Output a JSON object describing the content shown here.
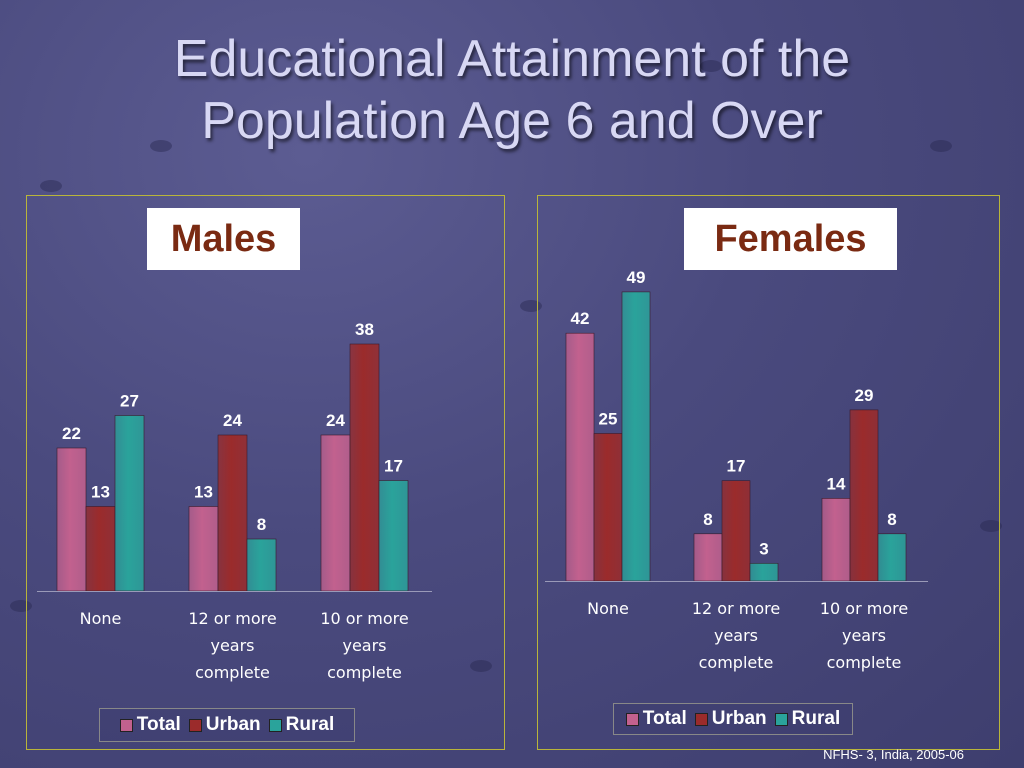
{
  "slide": {
    "title_line1": "Educational Attainment of the",
    "title_line2": "Population Age 6 and Over",
    "source": "NFHS- 3, India, 2005-06"
  },
  "colors": {
    "total": "#c2618e",
    "urban": "#9b2b2b",
    "rural": "#2aa39b",
    "panel_border": "#b9b53a"
  },
  "chart_data": [
    {
      "type": "bar",
      "title": "Males",
      "categories": [
        "None",
        "12 or more years complete",
        "10 or more years complete"
      ],
      "series": [
        {
          "name": "Total",
          "values": [
            22,
            13,
            24
          ]
        },
        {
          "name": "Urban",
          "values": [
            13,
            24,
            38
          ]
        },
        {
          "name": "Rural",
          "values": [
            27,
            8,
            17
          ]
        }
      ],
      "legend_position": "bottom",
      "grid": false
    },
    {
      "type": "bar",
      "title": "Females",
      "categories": [
        "None",
        "12 or more years complete",
        "10 or more years complete"
      ],
      "series": [
        {
          "name": "Total",
          "values": [
            42,
            8,
            14
          ]
        },
        {
          "name": "Urban",
          "values": [
            25,
            17,
            29
          ]
        },
        {
          "name": "Rural",
          "values": [
            49,
            3,
            8
          ]
        }
      ],
      "legend_position": "bottom",
      "grid": false
    }
  ]
}
